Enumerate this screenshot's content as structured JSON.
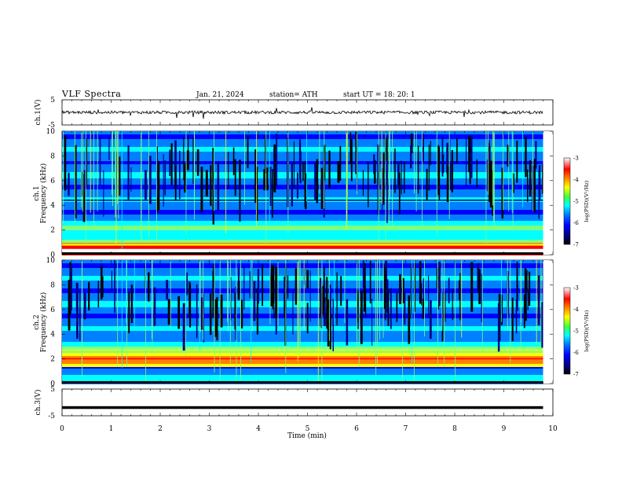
{
  "header": {
    "title": "VLF  Spectra",
    "date": "Jan. 21, 2024",
    "station": "station= ATH",
    "start": "start  UT  =    18: 20: 1"
  },
  "colors": {
    "spectrogram_scale": [
      "#000000",
      "#00007f",
      "#0000ff",
      "#0080ff",
      "#00ffff",
      "#80ff80",
      "#ffff00",
      "#ff8000",
      "#ff0000",
      "#ffffff"
    ]
  },
  "chart_data": [
    {
      "type": "line",
      "panel": "ch1",
      "ylabel": "ch.1(V)",
      "ylim": [
        -5,
        5
      ],
      "yticks": [
        "5",
        "-5"
      ],
      "description_values": {
        "baseline": 0.0,
        "noise_amplitude": 0.6,
        "spike_amplitude": 2.5
      },
      "xlim": [
        0,
        10
      ]
    },
    {
      "type": "heatmap",
      "panel": "ch1_spectrogram",
      "ylabel_top": "ch.1",
      "ylabel": "Frequency  (kHz)",
      "ylim": [
        0,
        10
      ],
      "yticks": [
        "10",
        "8",
        "6",
        "4",
        "2",
        "0"
      ],
      "xlim": [
        0,
        10
      ],
      "data_end_min": 9.8,
      "colorbar": {
        "label": "log(PSD)(V²/Hz)",
        "range": [
          -7,
          -3
        ],
        "ticks": [
          "-3",
          "-4",
          "-5",
          "-6",
          "-7"
        ]
      },
      "bands_khz": [
        {
          "f": 0.4,
          "level": -3.3
        },
        {
          "f": 0.8,
          "level": -4.5
        },
        {
          "f": 1.5,
          "level": -5.2
        },
        {
          "f": 2.2,
          "level": -4.8
        },
        {
          "f": 3.5,
          "level": -5.9
        },
        {
          "f": 4.4,
          "level": -6.2
        },
        {
          "f": 6.5,
          "level": -5.1
        },
        {
          "f": 7.8,
          "level": -5.6
        }
      ]
    },
    {
      "type": "heatmap",
      "panel": "ch2_spectrogram",
      "ylabel_top": "ch.2",
      "ylabel": "Frequency  (kHz)",
      "ylim": [
        0,
        10
      ],
      "yticks": [
        "10",
        "8",
        "6",
        "4",
        "2",
        "0"
      ],
      "xlim": [
        0,
        10
      ],
      "data_end_min": 9.8,
      "colorbar": {
        "label": "log(PSD)(V²/Hz)",
        "range": [
          -7,
          -3
        ],
        "ticks": [
          "-3",
          "-4",
          "-5",
          "-6",
          "-7"
        ]
      },
      "bands_khz": [
        {
          "f": 2.0,
          "level": -3.8
        },
        {
          "f": 2.7,
          "level": -4.6
        },
        {
          "f": 3.3,
          "level": -5.2
        },
        {
          "f": 5.0,
          "level": -5.8
        },
        {
          "f": 6.4,
          "level": -5.2
        }
      ]
    },
    {
      "type": "line",
      "panel": "ch3",
      "ylabel": "ch.3(V)",
      "ylim": [
        -5,
        5
      ],
      "yticks": [
        "5",
        "-5"
      ],
      "description_values": {
        "baseline": -2.0
      },
      "xlim": [
        0,
        10
      ],
      "xlabel": "Time  (min)",
      "xticks": [
        "0",
        "1",
        "2",
        "3",
        "4",
        "5",
        "6",
        "7",
        "8",
        "9",
        "10"
      ]
    }
  ]
}
